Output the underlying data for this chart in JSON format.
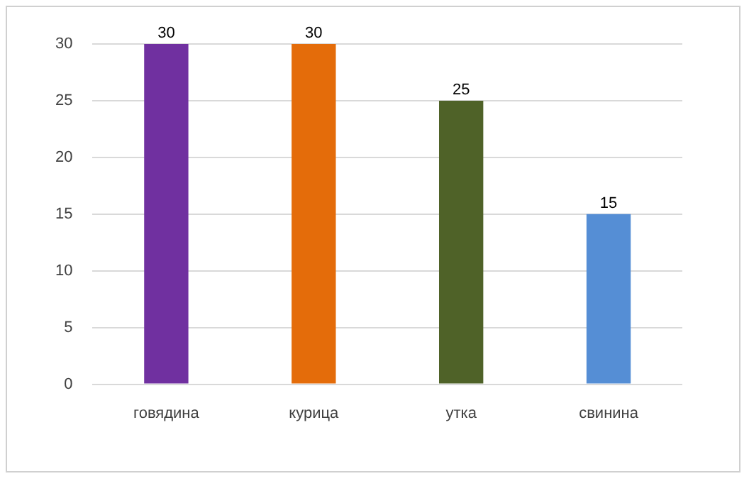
{
  "chart_data": {
    "type": "bar",
    "categories": [
      "говядина",
      "курица",
      "утка",
      "свинина"
    ],
    "values": [
      30,
      30,
      25,
      15
    ],
    "colors": [
      "#7030a0",
      "#e46c0a",
      "#4f6228",
      "#558ed5"
    ],
    "ylim": [
      0,
      30
    ],
    "yticks": [
      0,
      5,
      10,
      15,
      20,
      25,
      30
    ],
    "grid": "y",
    "data_labels": true
  }
}
